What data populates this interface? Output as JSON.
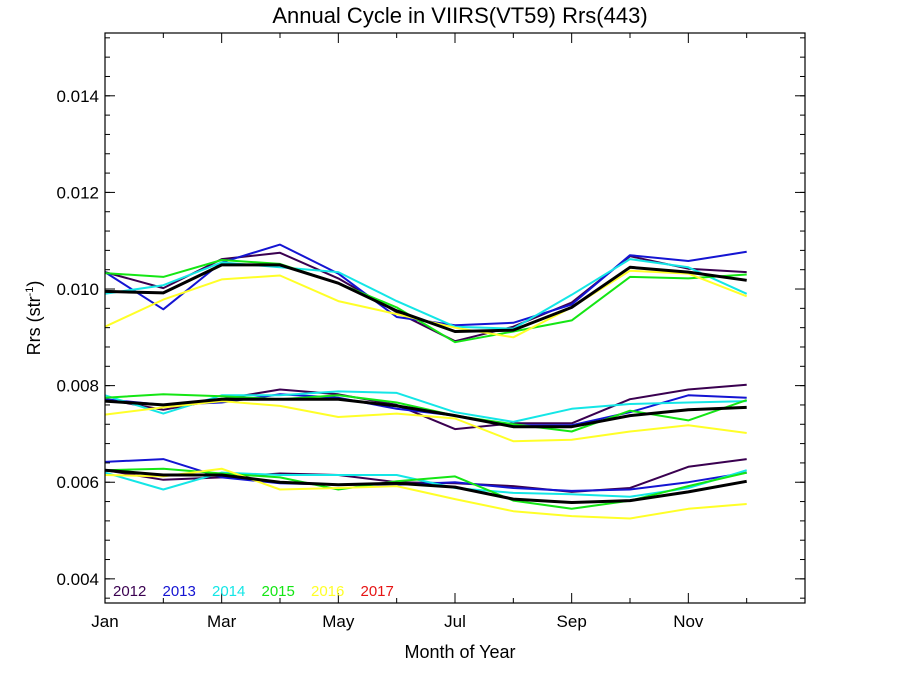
{
  "chart_data": {
    "type": "line",
    "title": "Annual Cycle in VIIRS(VT59) Rrs(443)",
    "xlabel": "Month of Year",
    "ylabel_base": "Rrs (str",
    "ylabel_sup": "-1",
    "ylabel_end": ")",
    "xlim": [
      1,
      13
    ],
    "ylim": [
      0.0035,
      0.0153
    ],
    "x_ticks": [
      1,
      3,
      5,
      7,
      9,
      11
    ],
    "x_tick_labels": [
      "Jan",
      "Mar",
      "May",
      "Jul",
      "Sep",
      "Nov"
    ],
    "y_ticks": [
      0.004,
      0.006,
      0.008,
      0.01,
      0.012,
      0.014
    ],
    "y_tick_labels": [
      "0.004",
      "0.006",
      "0.008",
      "0.010",
      "0.012",
      "0.014"
    ],
    "grid": false,
    "legend_position": "bottom-left",
    "x": [
      1,
      2,
      3,
      4,
      5,
      6,
      7,
      8,
      9,
      10,
      11,
      12
    ],
    "legend": [
      {
        "label": "2012",
        "color": "#3a0050"
      },
      {
        "label": "2013",
        "color": "#1414d2"
      },
      {
        "label": "2014",
        "color": "#14e6e6"
      },
      {
        "label": "2015",
        "color": "#14e614"
      },
      {
        "label": "2016",
        "color": "#ffff28"
      },
      {
        "label": "2017",
        "color": "#e61414"
      }
    ],
    "series": [
      {
        "group": "high",
        "color": "#3a0050",
        "values": [
          0.01035,
          0.01002,
          0.01062,
          0.01075,
          0.01022,
          0.00952,
          0.00892,
          0.00922,
          0.00972,
          0.01068,
          0.01042,
          0.01035
        ]
      },
      {
        "group": "high",
        "color": "#1414d2",
        "values": [
          0.01035,
          0.00958,
          0.01055,
          0.01092,
          0.01032,
          0.00942,
          0.00925,
          0.0093,
          0.00968,
          0.0107,
          0.01058,
          0.01077
        ]
      },
      {
        "group": "high",
        "color": "#14e6e6",
        "values": [
          0.0099,
          0.01008,
          0.01055,
          0.01045,
          0.01035,
          0.00975,
          0.00922,
          0.00918,
          0.00988,
          0.01062,
          0.01045,
          0.0099
        ]
      },
      {
        "group": "high",
        "color": "#14e614",
        "values": [
          0.01033,
          0.01025,
          0.0106,
          0.01052,
          0.01012,
          0.00962,
          0.0089,
          0.00912,
          0.00935,
          0.01025,
          0.01022,
          0.0103
        ]
      },
      {
        "group": "high",
        "color": "#ffff28",
        "values": [
          0.00922,
          0.00978,
          0.0102,
          0.01028,
          0.00975,
          0.00948,
          0.0092,
          0.009,
          0.00962,
          0.01038,
          0.01032,
          0.00985
        ]
      },
      {
        "group": "high",
        "color": "#000000",
        "mean": true,
        "values": [
          0.00995,
          0.00992,
          0.0105,
          0.0105,
          0.01012,
          0.00955,
          0.00912,
          0.00915,
          0.00962,
          0.01045,
          0.01035,
          0.01018
        ]
      },
      {
        "group": "mid",
        "color": "#3a0050",
        "values": [
          0.00772,
          0.0075,
          0.00772,
          0.00792,
          0.00782,
          0.0076,
          0.0071,
          0.00722,
          0.00722,
          0.00772,
          0.00792,
          0.00802
        ]
      },
      {
        "group": "mid",
        "color": "#1414d2",
        "values": [
          0.00772,
          0.0076,
          0.00765,
          0.00782,
          0.00775,
          0.00752,
          0.00738,
          0.00718,
          0.00718,
          0.00745,
          0.0078,
          0.00775
        ]
      },
      {
        "group": "mid",
        "color": "#14e6e6",
        "values": [
          0.0078,
          0.00742,
          0.0078,
          0.0078,
          0.00788,
          0.00785,
          0.00745,
          0.00725,
          0.00752,
          0.00762,
          0.00765,
          0.00768
        ]
      },
      {
        "group": "mid",
        "color": "#14e614",
        "values": [
          0.00775,
          0.00782,
          0.00778,
          0.00772,
          0.0078,
          0.00765,
          0.00738,
          0.0072,
          0.00705,
          0.00748,
          0.00728,
          0.0077
        ]
      },
      {
        "group": "mid",
        "color": "#ffff28",
        "values": [
          0.0074,
          0.00755,
          0.00768,
          0.00758,
          0.00735,
          0.00742,
          0.00732,
          0.00685,
          0.00688,
          0.00705,
          0.00718,
          0.00702
        ]
      },
      {
        "group": "mid",
        "color": "#000000",
        "mean": true,
        "values": [
          0.00768,
          0.0076,
          0.00772,
          0.00772,
          0.00772,
          0.00758,
          0.00738,
          0.00715,
          0.00715,
          0.00738,
          0.0075,
          0.00755
        ]
      },
      {
        "group": "low",
        "color": "#3a0050",
        "values": [
          0.00625,
          0.00605,
          0.0061,
          0.00618,
          0.00615,
          0.006,
          0.00598,
          0.00592,
          0.0058,
          0.00588,
          0.00632,
          0.00648
        ]
      },
      {
        "group": "low",
        "color": "#1414d2",
        "values": [
          0.00642,
          0.00648,
          0.0061,
          0.00598,
          0.00595,
          0.00595,
          0.006,
          0.00588,
          0.00582,
          0.00585,
          0.006,
          0.0062
        ]
      },
      {
        "group": "low",
        "color": "#14e6e6",
        "values": [
          0.0062,
          0.00585,
          0.0062,
          0.00615,
          0.00615,
          0.00615,
          0.00588,
          0.00578,
          0.00575,
          0.0057,
          0.00588,
          0.00625
        ]
      },
      {
        "group": "low",
        "color": "#14e614",
        "values": [
          0.00625,
          0.00628,
          0.00618,
          0.0061,
          0.00585,
          0.00602,
          0.00612,
          0.00562,
          0.00545,
          0.00562,
          0.00592,
          0.0062
        ]
      },
      {
        "group": "low",
        "color": "#ffff28",
        "values": [
          0.00615,
          0.00612,
          0.00628,
          0.00585,
          0.00588,
          0.00592,
          0.00565,
          0.0054,
          0.0053,
          0.00525,
          0.00545,
          0.00555
        ]
      },
      {
        "group": "low",
        "color": "#000000",
        "mean": true,
        "values": [
          0.00625,
          0.00615,
          0.00615,
          0.006,
          0.00595,
          0.00598,
          0.0059,
          0.00565,
          0.00558,
          0.00562,
          0.0058,
          0.00602
        ]
      }
    ]
  }
}
